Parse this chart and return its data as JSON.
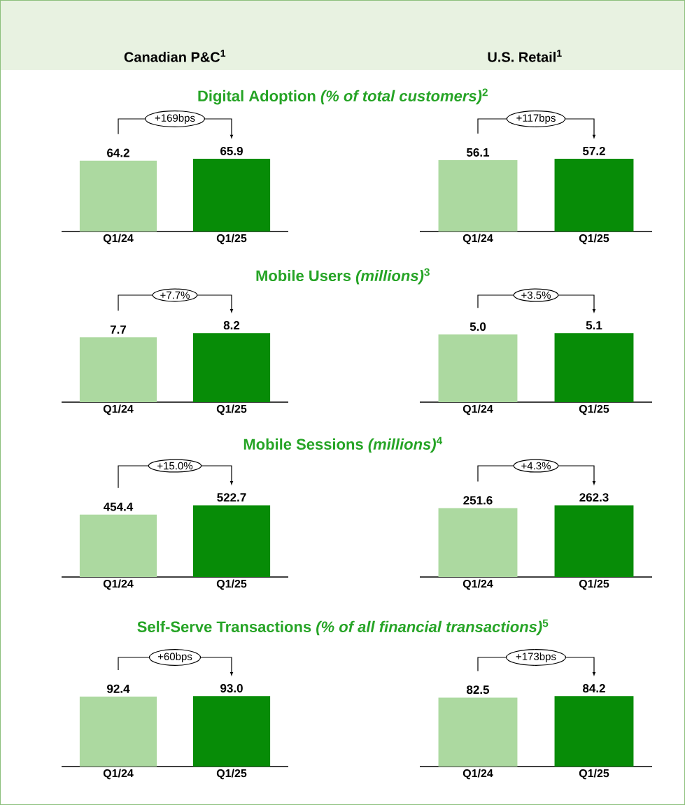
{
  "chart_data": [
    {
      "type": "bar",
      "title": "Canadian P&C$^{1}$",
      "subtitle": "Digital Adoption *(% of total customers)*$^{2}$",
      "categories": [
        "Q1/24",
        "Q1/25"
      ],
      "values": [
        64.2,
        65.9
      ],
      "colors": [
        "#acd9a0",
        "#078c07"
      ],
      "value_labels": [
        "64.2",
        "65.9"
      ],
      "tick_labels": "x",
      "annotations": [
        "+169bps"
      ]
    },
    {
      "type": "bar",
      "title": "U.S. Retail$^{1}$",
      "categories": [
        "Q1/24",
        "Q1/25"
      ],
      "values": [
        56.1,
        57.2
      ],
      "colors": [
        "#acd9a0",
        "#078c07"
      ],
      "value_labels": [
        "56.1",
        "57.2"
      ],
      "tick_labels": "x",
      "annotations": [
        "+117bps"
      ]
    },
    {
      "type": "bar",
      "subtitle": "Mobile Users *(millions)*$^{3}$",
      "categories": [
        "Q1/24",
        "Q1/25"
      ],
      "values": [
        7.7,
        8.2
      ],
      "colors": [
        "#acd9a0",
        "#078c07"
      ],
      "value_labels": [
        "7.7",
        "8.2"
      ],
      "tick_labels": "x",
      "annotations": [
        "+7.7%"
      ]
    },
    {
      "type": "bar",
      "categories": [
        "Q1/24",
        "Q1/25"
      ],
      "values": [
        5.0,
        5.1
      ],
      "colors": [
        "#acd9a0",
        "#078c07"
      ],
      "value_labels": [
        "5.0",
        "5.1"
      ],
      "tick_labels": "x",
      "annotations": [
        "+3.5%"
      ]
    },
    {
      "type": "bar",
      "subtitle": "Mobile Sessions *(millions)*$^{4}$",
      "categories": [
        "Q1/24",
        "Q1/25"
      ],
      "values": [
        454.4,
        522.7
      ],
      "colors": [
        "#acd9a0",
        "#078c07"
      ],
      "value_labels": [
        "454.4",
        "522.7"
      ],
      "tick_labels": "x",
      "annotations": [
        "+15.0%"
      ]
    },
    {
      "type": "bar",
      "categories": [
        "Q1/24",
        "Q1/25"
      ],
      "values": [
        251.6,
        262.3
      ],
      "colors": [
        "#acd9a0",
        "#078c07"
      ],
      "value_labels": [
        "251.6",
        "262.3"
      ],
      "tick_labels": "x",
      "annotations": [
        "+4.3%"
      ]
    },
    {
      "type": "bar",
      "subtitle": "Self-Serve Transactions *(% of all financial transactions)*$^{5}$",
      "categories": [
        "Q1/24",
        "Q1/25"
      ],
      "values": [
        92.4,
        93.0
      ],
      "colors": [
        "#acd9a0",
        "#078c07"
      ],
      "value_labels": [
        "92.4",
        "93.0"
      ],
      "tick_labels": "x",
      "annotations": [
        "+60bps"
      ]
    },
    {
      "type": "bar",
      "categories": [
        "Q1/24",
        "Q1/25"
      ],
      "values": [
        82.5,
        84.2
      ],
      "colors": [
        "#acd9a0",
        "#078c07"
      ],
      "value_labels": [
        "82.5",
        "84.2"
      ],
      "tick_labels": "x",
      "annotations": [
        "+173bps"
      ]
    }
  ]
}
